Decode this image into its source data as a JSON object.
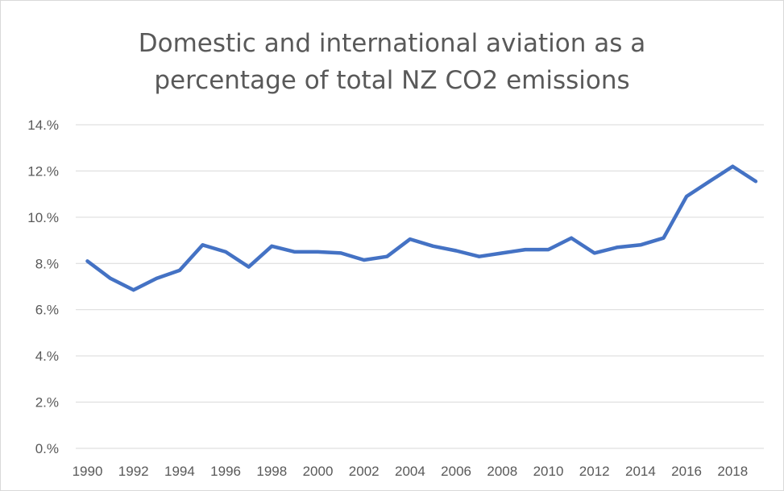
{
  "chart_data": {
    "type": "line",
    "title_lines": [
      "Domestic and international aviation as a",
      "percentage of total NZ CO2 emissions"
    ],
    "xlabel": "",
    "ylabel": "",
    "x": [
      1990,
      1991,
      1992,
      1993,
      1994,
      1995,
      1996,
      1997,
      1998,
      1999,
      2000,
      2001,
      2002,
      2003,
      2004,
      2005,
      2006,
      2007,
      2008,
      2009,
      2010,
      2011,
      2012,
      2013,
      2014,
      2015,
      2016,
      2017,
      2018,
      2019
    ],
    "x_tick_labels": [
      "1990",
      "1992",
      "1994",
      "1996",
      "1998",
      "2000",
      "2002",
      "2004",
      "2006",
      "2008",
      "2010",
      "2012",
      "2014",
      "2016",
      "2018"
    ],
    "y_tick_labels": [
      "0.%",
      "2.%",
      "4.%",
      "6.%",
      "8.%",
      "10.%",
      "12.%",
      "14.%"
    ],
    "y_ticks": [
      0,
      2,
      4,
      6,
      8,
      10,
      12,
      14
    ],
    "ylim": [
      0,
      14
    ],
    "grid": true,
    "series": [
      {
        "color": "#4472c4",
        "values": [
          8.1,
          7.35,
          6.85,
          7.35,
          7.7,
          8.8,
          8.5,
          7.85,
          8.75,
          8.5,
          8.5,
          8.45,
          8.15,
          8.3,
          9.05,
          8.75,
          8.55,
          8.3,
          8.45,
          8.6,
          8.6,
          9.1,
          8.45,
          8.7,
          8.8,
          9.1,
          10.9,
          11.55,
          12.2,
          11.55
        ]
      }
    ]
  }
}
